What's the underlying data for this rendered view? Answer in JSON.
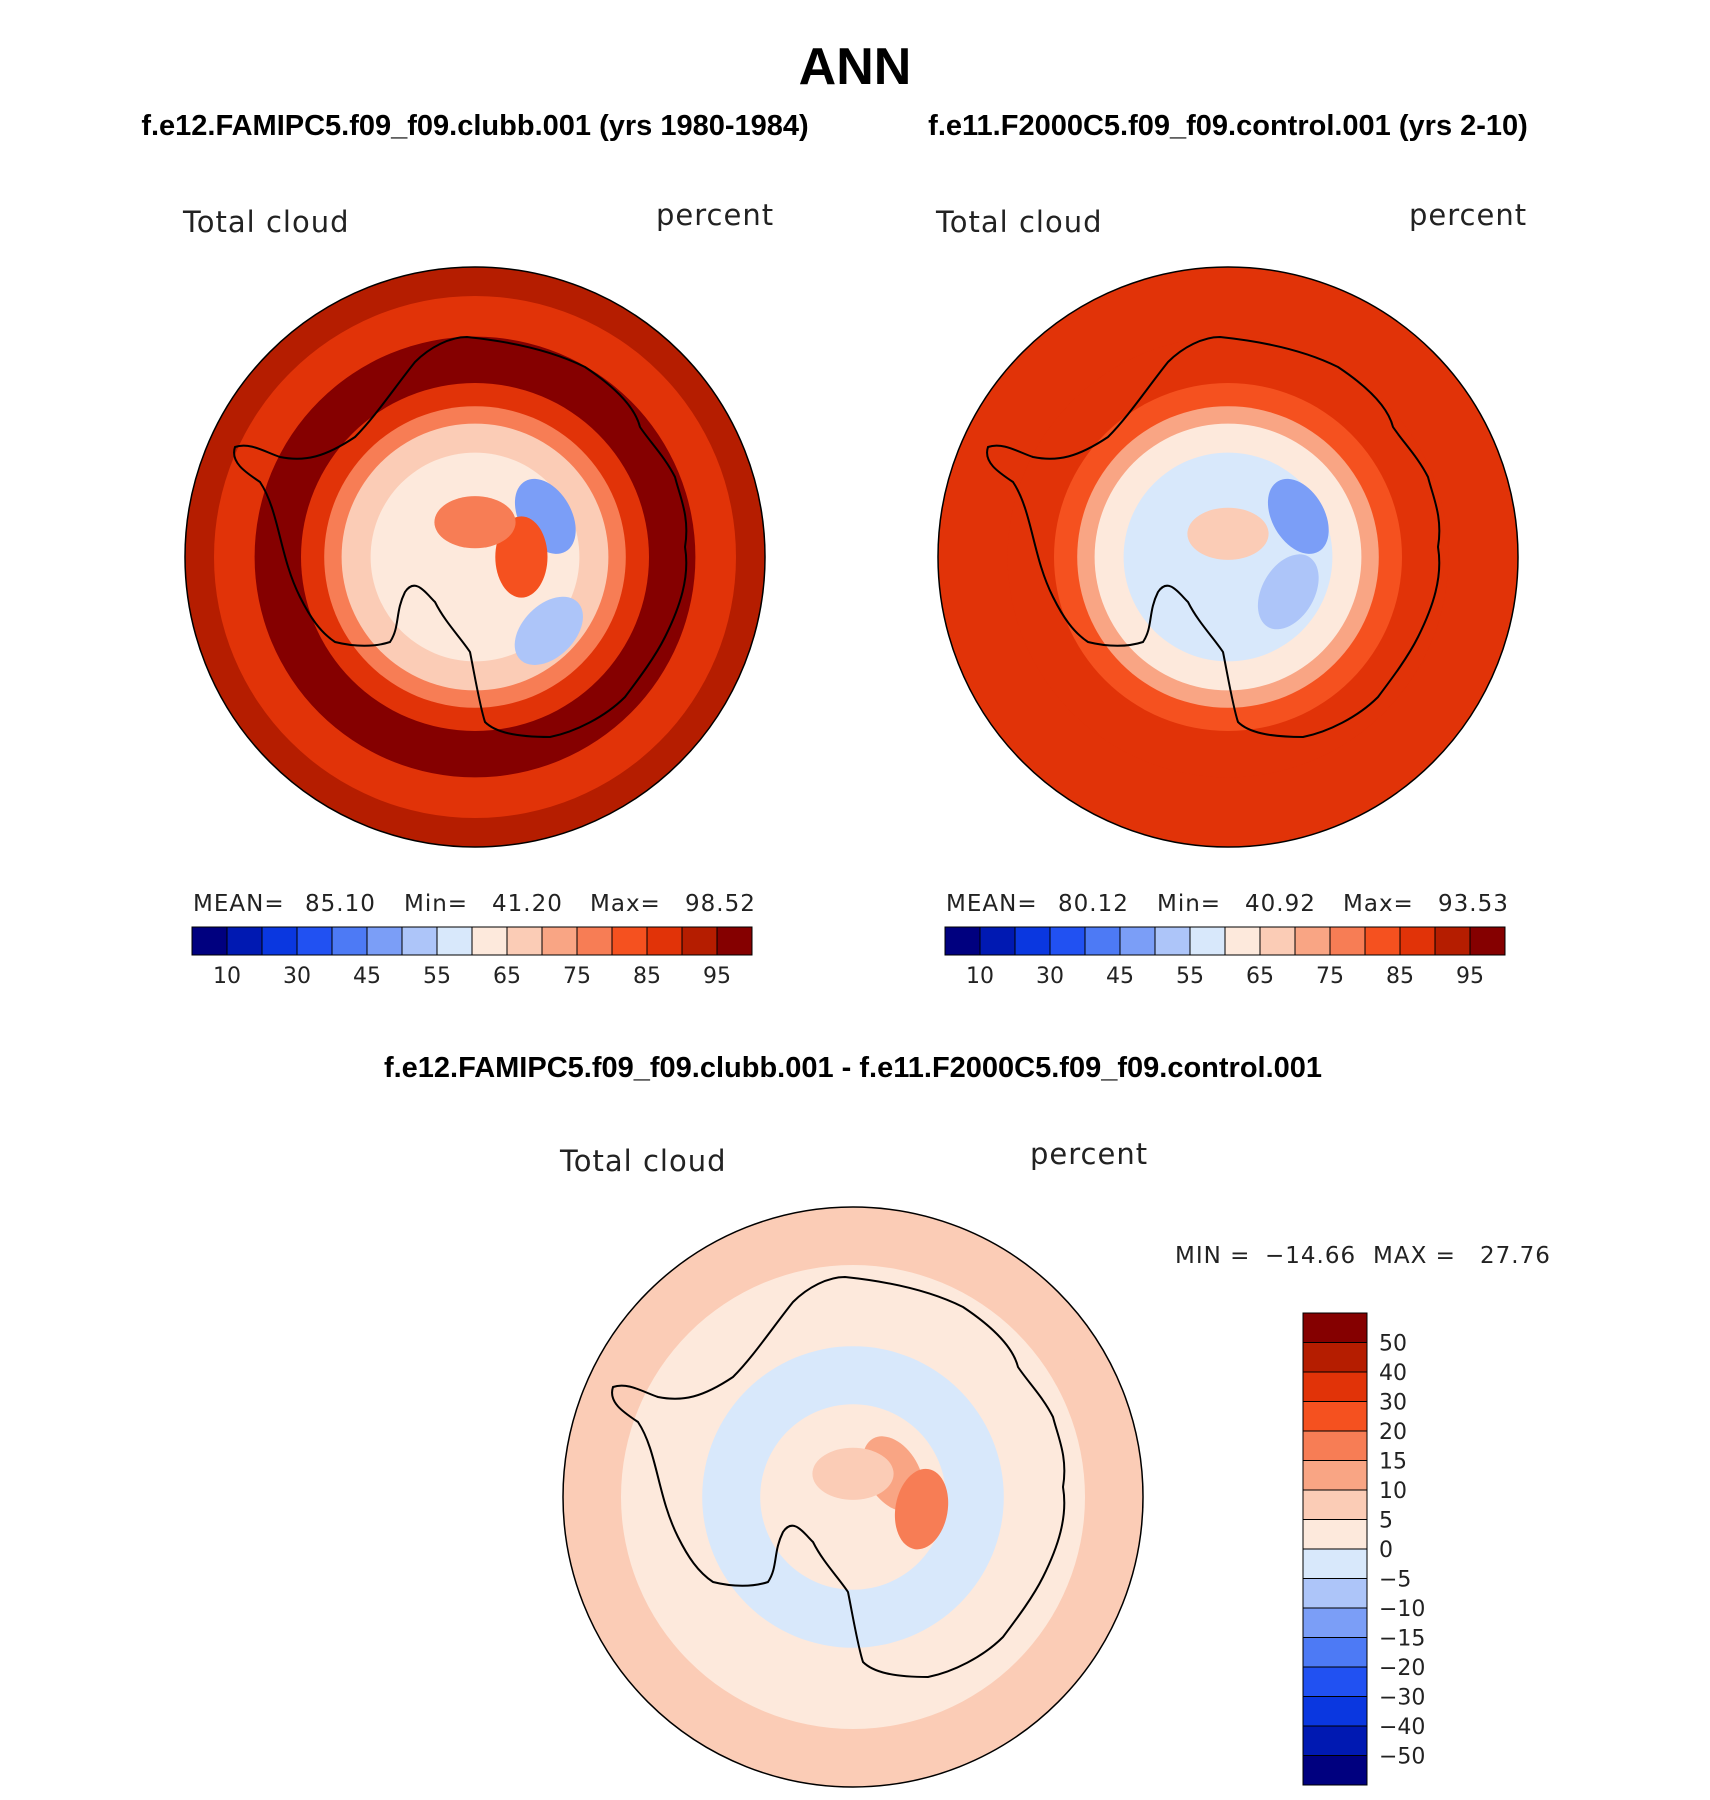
{
  "figure": {
    "main_title": "ANN",
    "case1_title": "f.e12.FAMIPC5.f09_f09.clubb.001 (yrs 1980-1984)",
    "case2_title": "f.e11.F2000C5.f09_f09.control.001 (yrs 2-10)",
    "diff_title": "f.e12.FAMIPC5.f09_f09.clubb.001 - f.e11.F2000C5.f09_f09.control.001"
  },
  "colors": {
    "abs_scale": [
      "#00007f",
      "#0019b2",
      "#0a37e0",
      "#2151f2",
      "#4d7af5",
      "#7b9ef7",
      "#adc5f9",
      "#d8e8fb",
      "#fde9dc",
      "#fbccb6",
      "#f9a584",
      "#f77d55",
      "#f5511f",
      "#e13308",
      "#b51d00",
      "#850000"
    ],
    "diff_scale": [
      "#00007f",
      "#0019b2",
      "#0a37e0",
      "#2151f2",
      "#4d7af5",
      "#7b9ef7",
      "#adc5f9",
      "#d8e8fb",
      "#fde9dc",
      "#fbccb6",
      "#f9a584",
      "#f77d55",
      "#f5511f",
      "#e13308",
      "#b51d00",
      "#850000"
    ],
    "coastline": "#000000"
  },
  "chart_data": [
    {
      "type": "heatmap",
      "name": "case1",
      "projection": "south-polar-stereographic",
      "variable_label": "Total cloud",
      "units_label": "percent",
      "stats": {
        "mean_label": "MEAN=",
        "mean": "85.10",
        "min_label": "Min=",
        "min": "41.20",
        "max_label": "Max=",
        "max": "98.52"
      },
      "colorbar": {
        "orientation": "horizontal",
        "tick_labels": [
          "10",
          "30",
          "45",
          "55",
          "65",
          "75",
          "85",
          "95"
        ]
      },
      "field": {
        "rings": [
          {
            "lat": -40,
            "value": 92
          },
          {
            "lat": -45,
            "value": 88
          },
          {
            "lat": -52,
            "value": 97
          },
          {
            "lat": -60,
            "value": 86
          },
          {
            "lat": -64,
            "value": 76
          },
          {
            "lat": -67,
            "value": 66
          },
          {
            "lat": -72,
            "value": 62
          }
        ],
        "features": [
          {
            "lon": 60,
            "lat": -76,
            "value": 48
          },
          {
            "lon": 90,
            "lat": -82,
            "value": 84
          },
          {
            "lon": 0,
            "lat": -84,
            "value": 79
          },
          {
            "lon": 135,
            "lat": -72,
            "value": 50
          }
        ]
      }
    },
    {
      "type": "heatmap",
      "name": "case2",
      "projection": "south-polar-stereographic",
      "variable_label": "Total cloud",
      "units_label": "percent",
      "stats": {
        "mean_label": "MEAN=",
        "mean": "80.12",
        "min_label": "Min=",
        "min": "40.92",
        "max_label": "Max=",
        "max": "93.53"
      },
      "colorbar": {
        "orientation": "horizontal",
        "tick_labels": [
          "10",
          "30",
          "45",
          "55",
          "65",
          "75",
          "85",
          "95"
        ]
      },
      "field": {
        "rings": [
          {
            "lat": -40,
            "value": 86
          },
          {
            "lat": -52,
            "value": 88
          },
          {
            "lat": -60,
            "value": 84
          },
          {
            "lat": -64,
            "value": 74
          },
          {
            "lat": -67,
            "value": 60
          },
          {
            "lat": -72,
            "value": 57
          }
        ],
        "features": [
          {
            "lon": 60,
            "lat": -76,
            "value": 46
          },
          {
            "lon": 120,
            "lat": -78,
            "value": 52
          },
          {
            "lon": 0,
            "lat": -86,
            "value": 66
          }
        ]
      }
    },
    {
      "type": "heatmap",
      "name": "difference",
      "projection": "south-polar-stereographic",
      "variable_label": "Total cloud",
      "units_label": "percent",
      "stats": {
        "min_label": "MIN =",
        "min": "−14.66",
        "max_label": "MAX =",
        "max": "27.76"
      },
      "colorbar": {
        "orientation": "vertical",
        "tick_labels": [
          "50",
          "40",
          "30",
          "20",
          "15",
          "10",
          "5",
          "0",
          "−5",
          "−10",
          "−15",
          "−20",
          "−30",
          "−40",
          "−50"
        ]
      },
      "field": {
        "rings": [
          {
            "lat": -40,
            "value": 7
          },
          {
            "lat": -45,
            "value": 5
          },
          {
            "lat": -50,
            "value": 2
          },
          {
            "lat": -58,
            "value": 1
          },
          {
            "lat": -64,
            "value": -3
          },
          {
            "lat": -68,
            "value": -2
          },
          {
            "lat": -74,
            "value": 3
          }
        ],
        "features": [
          {
            "lon": 60,
            "lat": -82,
            "value": 14
          },
          {
            "lon": 100,
            "lat": -78,
            "value": 18
          },
          {
            "lon": 0,
            "lat": -86,
            "value": 8
          }
        ]
      }
    }
  ]
}
